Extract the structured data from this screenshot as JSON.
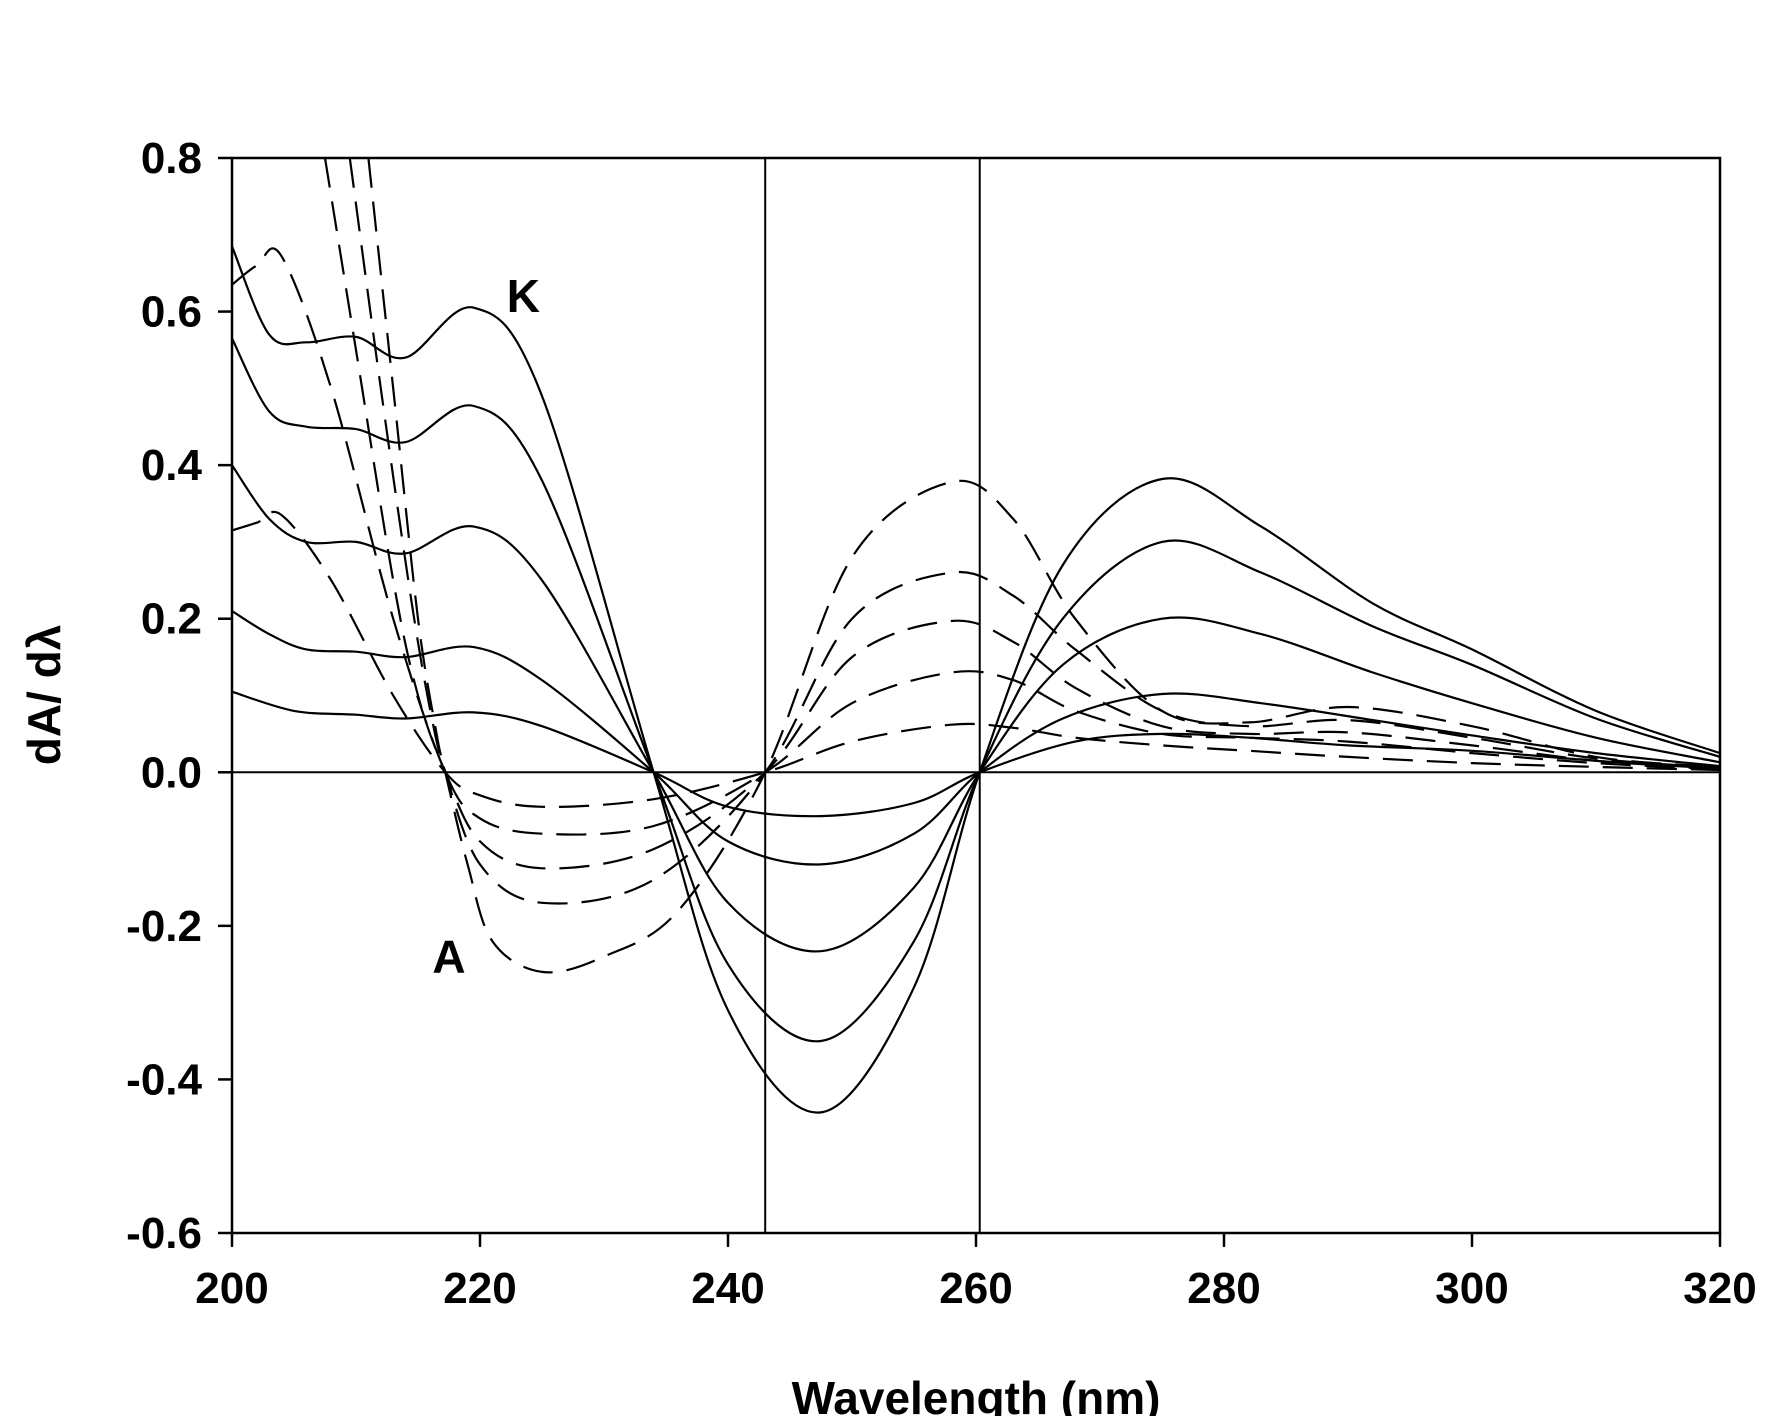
{
  "chart_data": {
    "type": "line",
    "title": "",
    "xlabel": "Wavelength (nm)",
    "ylabel": "dA/ dλ",
    "xlim": [
      200,
      320
    ],
    "ylim": [
      -0.6,
      0.8
    ],
    "xticks": [
      200,
      220,
      240,
      260,
      280,
      300,
      320
    ],
    "xtick_labels": [
      "200",
      "220",
      "240",
      "260",
      "280",
      "300",
      "320"
    ],
    "yticks": [
      -0.6,
      -0.4,
      -0.2,
      0.0,
      0.2,
      0.4,
      0.6,
      0.8
    ],
    "ytick_labels": [
      "-0.6",
      "-0.4",
      "-0.2",
      "0.0",
      "0.2",
      "0.4",
      "0.6",
      "0.8"
    ],
    "zero_line": 0,
    "reference_lines_x": [
      243,
      260.3
    ],
    "annotations": [
      {
        "text": "K",
        "x": 223.5,
        "y": 0.62
      },
      {
        "text": "A",
        "x": 217.5,
        "y": -0.24
      }
    ],
    "series": [
      {
        "name": "solid-1",
        "style": "solid",
        "x": [
          200,
          205,
          210,
          214,
          219.5,
          225,
          234,
          240,
          247.5,
          255,
          260.3,
          268,
          275,
          282,
          290,
          300,
          310,
          320
        ],
        "y": [
          0.105,
          0.08,
          0.075,
          0.07,
          0.078,
          0.06,
          0,
          -0.045,
          -0.057,
          -0.04,
          0,
          0.04,
          0.05,
          0.045,
          0.035,
          0.028,
          0.015,
          0.005
        ]
      },
      {
        "name": "solid-2",
        "style": "solid",
        "x": [
          200,
          203,
          206,
          210,
          214,
          219.5,
          225,
          234,
          240,
          247.5,
          255,
          260.3,
          267,
          275,
          283,
          292,
          300,
          310,
          320
        ],
        "y": [
          0.21,
          0.18,
          0.16,
          0.157,
          0.15,
          0.163,
          0.12,
          0,
          -0.09,
          -0.12,
          -0.08,
          0,
          0.07,
          0.102,
          0.09,
          0.068,
          0.048,
          0.025,
          0.008
        ]
      },
      {
        "name": "solid-3",
        "style": "solid",
        "x": [
          200,
          203,
          206,
          210,
          214,
          219.5,
          225,
          234,
          240,
          247.5,
          255,
          260.3,
          267,
          275,
          283,
          292,
          300,
          310,
          320
        ],
        "y": [
          0.4,
          0.33,
          0.3,
          0.3,
          0.285,
          0.32,
          0.25,
          0,
          -0.17,
          -0.233,
          -0.15,
          0,
          0.14,
          0.2,
          0.18,
          0.13,
          0.09,
          0.045,
          0.013
        ]
      },
      {
        "name": "solid-4",
        "style": "solid",
        "x": [
          200,
          203,
          206,
          210,
          214,
          219.5,
          225,
          234,
          240,
          247.5,
          255,
          260.3,
          267,
          275,
          283,
          292,
          300,
          310,
          320
        ],
        "y": [
          0.565,
          0.47,
          0.45,
          0.447,
          0.43,
          0.477,
          0.38,
          0,
          -0.25,
          -0.35,
          -0.22,
          0,
          0.2,
          0.3,
          0.26,
          0.19,
          0.14,
          0.07,
          0.02
        ]
      },
      {
        "name": "solid-5",
        "style": "solid",
        "x": [
          200,
          203,
          206,
          210,
          214,
          219.5,
          225,
          234,
          240,
          247.5,
          255,
          260.3,
          267,
          275,
          283,
          292,
          300,
          310,
          320
        ],
        "y": [
          0.685,
          0.57,
          0.56,
          0.567,
          0.54,
          0.605,
          0.49,
          0,
          -0.31,
          -0.443,
          -0.28,
          0,
          0.27,
          0.382,
          0.32,
          0.22,
          0.16,
          0.08,
          0.025
        ]
      },
      {
        "name": "dashed-1",
        "style": "dashed",
        "x": [
          200,
          202,
          204,
          208,
          213,
          217.2,
          220,
          225,
          234,
          243,
          250,
          258,
          263,
          268,
          275,
          282,
          290,
          300,
          310,
          320
        ],
        "y": [
          0.315,
          0.325,
          0.335,
          0.25,
          0.1,
          0,
          -0.03,
          -0.045,
          -0.035,
          0,
          0.04,
          0.062,
          0.058,
          0.045,
          0.035,
          0.028,
          0.02,
          0.012,
          0.007,
          0.003
        ]
      },
      {
        "name": "dashed-2",
        "style": "dashed",
        "x": [
          200,
          202,
          204,
          208,
          213,
          217.2,
          220,
          225,
          234,
          243,
          250,
          258,
          263,
          268,
          275,
          282,
          290,
          300,
          310,
          320
        ],
        "y": [
          0.635,
          0.66,
          0.672,
          0.5,
          0.2,
          0,
          -0.06,
          -0.08,
          -0.07,
          0,
          0.09,
          0.13,
          0.12,
          0.08,
          0.05,
          0.045,
          0.04,
          0.025,
          0.012,
          0.004
        ]
      },
      {
        "name": "dashed-3",
        "style": "dashed",
        "x": [
          207.5,
          210,
          213,
          215,
          217.2,
          220,
          225,
          234,
          243,
          250,
          258,
          263,
          268,
          275,
          282,
          290,
          300,
          310,
          320
        ],
        "y": [
          0.8,
          0.55,
          0.25,
          0.1,
          0,
          -0.09,
          -0.125,
          -0.1,
          0,
          0.15,
          0.197,
          0.17,
          0.11,
          0.06,
          0.05,
          0.052,
          0.035,
          0.015,
          0.005
        ]
      },
      {
        "name": "dashed-4",
        "style": "dashed",
        "x": [
          209.5,
          212,
          214.5,
          216,
          217.2,
          220,
          225,
          234,
          243,
          250,
          258,
          263,
          268,
          275,
          282,
          290,
          300,
          310,
          320
        ],
        "y": [
          0.8,
          0.5,
          0.22,
          0.08,
          0,
          -0.12,
          -0.17,
          -0.14,
          0,
          0.2,
          0.26,
          0.23,
          0.16,
          0.08,
          0.06,
          0.068,
          0.045,
          0.018,
          0.006
        ]
      },
      {
        "name": "dashed-5",
        "style": "dashed",
        "x": [
          211,
          213,
          215,
          216.5,
          217.2,
          219,
          221,
          225,
          230,
          236,
          243,
          250,
          258,
          263,
          268,
          275,
          282,
          290,
          300,
          310,
          320
        ],
        "y": [
          0.8,
          0.5,
          0.2,
          0.05,
          0,
          -0.12,
          -0.22,
          -0.26,
          -0.24,
          -0.18,
          0,
          0.28,
          0.378,
          0.33,
          0.2,
          0.08,
          0.065,
          0.085,
          0.06,
          0.02,
          0.007
        ]
      }
    ]
  }
}
